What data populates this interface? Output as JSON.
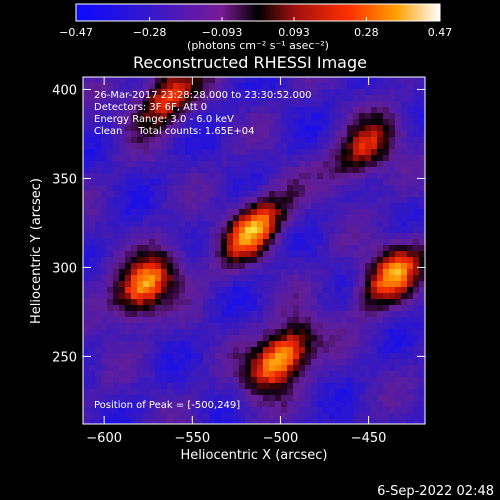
{
  "chart_data": {
    "type": "heatmap",
    "title": "Reconstructed RHESSI Image",
    "xlabel": "Heliocentric X (arcsec)",
    "ylabel": "Heliocentric Y (arcsec)",
    "xlim": [
      -612,
      -418
    ],
    "ylim": [
      212,
      407
    ],
    "x_ticks": [
      -600,
      -550,
      -500,
      -450
    ],
    "y_ticks": [
      250,
      300,
      350,
      400
    ],
    "x_tick_labels": [
      "−600",
      "−550",
      "−500",
      "−450"
    ],
    "y_tick_labels": [
      "250",
      "300",
      "350",
      "400"
    ],
    "colorbar": {
      "range": [
        -0.47,
        0.47
      ],
      "ticks": [
        -0.47,
        -0.28,
        -0.093,
        0.093,
        0.28,
        0.47
      ],
      "tick_labels": [
        "−0.47",
        "−0.28",
        "−0.093",
        "0.093",
        "0.28",
        "0.47"
      ],
      "unit": "(photons cm⁻² s⁻¹ asec⁻²)"
    },
    "annotations": {
      "time": "26-Mar-2017 23:28:28.000 to 23:30:52.000",
      "detectors": "Detectors: 3F 6F, Att 0",
      "energy": "Energy Range: 3.0 - 6.0 keV",
      "method": "Clean     Total counts: 1.65E+04",
      "peak": "Position of Peak = [-500,249]"
    },
    "sources": [
      {
        "x": -500,
        "y": 249,
        "value": 0.47
      },
      {
        "x": -577,
        "y": 290,
        "value": 0.4
      },
      {
        "x": -515,
        "y": 322,
        "value": 0.36
      },
      {
        "x": -437,
        "y": 296,
        "value": 0.34
      },
      {
        "x": -565,
        "y": 396,
        "value": 0.28
      },
      {
        "x": -452,
        "y": 366,
        "value": 0.22
      }
    ],
    "grid": false,
    "legend": "none"
  },
  "footer": {
    "date": "6-Sep-2022 02:48"
  }
}
